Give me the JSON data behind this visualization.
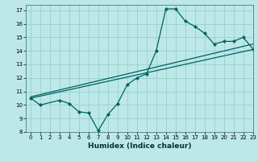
{
  "title": "",
  "xlabel": "Humidex (Indice chaleur)",
  "xlim": [
    -0.5,
    23
  ],
  "ylim": [
    8,
    17.4
  ],
  "yticks": [
    8,
    9,
    10,
    11,
    12,
    13,
    14,
    15,
    16,
    17
  ],
  "xticks": [
    0,
    1,
    2,
    3,
    4,
    5,
    6,
    7,
    8,
    9,
    10,
    11,
    12,
    13,
    14,
    15,
    16,
    17,
    18,
    19,
    20,
    21,
    22,
    23
  ],
  "bg_color": "#bde8e8",
  "grid_color": "#9acfcf",
  "line_color": "#006060",
  "line1_x": [
    0,
    1,
    3,
    4,
    5,
    6,
    7,
    8,
    9,
    10,
    11,
    12,
    13,
    14,
    15,
    16,
    17,
    18,
    19,
    20,
    21,
    22,
    23
  ],
  "line1_y": [
    10.5,
    10.0,
    10.35,
    10.1,
    9.5,
    9.4,
    8.1,
    9.3,
    10.1,
    11.5,
    12.0,
    12.3,
    14.0,
    17.1,
    17.1,
    16.2,
    15.8,
    15.3,
    14.5,
    14.7,
    14.7,
    15.0,
    14.15
  ],
  "line2_x": [
    0,
    23
  ],
  "line2_y": [
    10.5,
    14.1
  ],
  "line3_x": [
    0,
    23
  ],
  "line3_y": [
    10.6,
    14.5
  ]
}
